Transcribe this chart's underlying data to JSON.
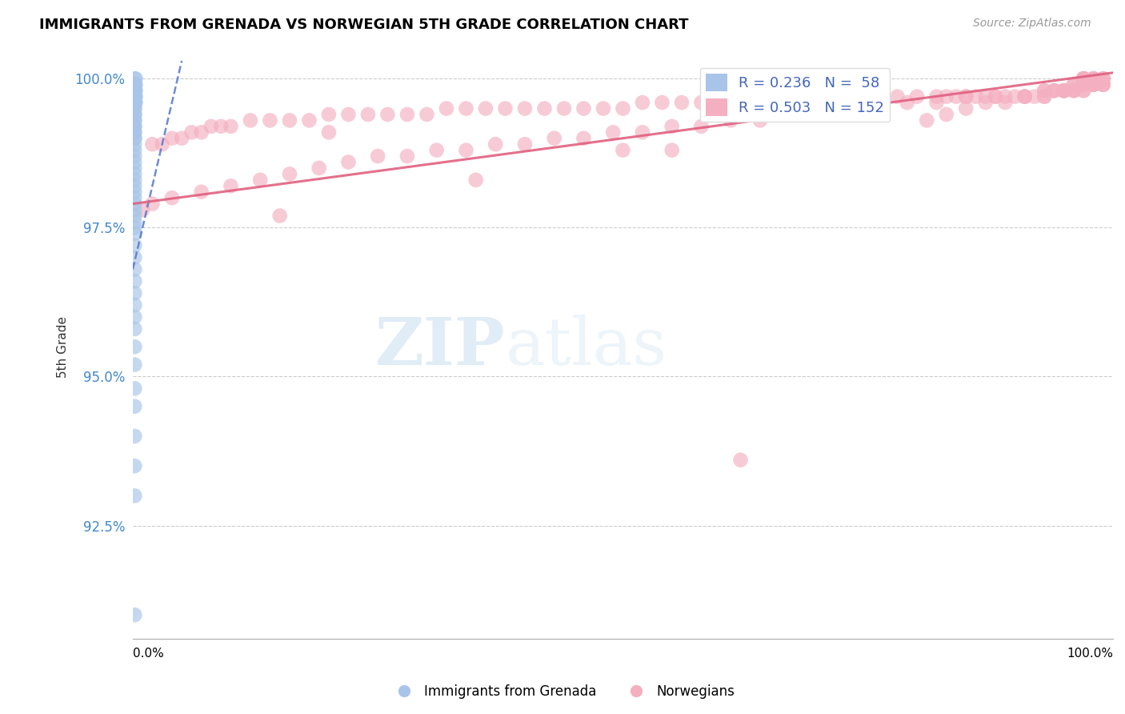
{
  "title": "IMMIGRANTS FROM GRENADA VS NORWEGIAN 5TH GRADE CORRELATION CHART",
  "source": "Source: ZipAtlas.com",
  "ylabel": "5th Grade",
  "xlim": [
    0.0,
    1.0
  ],
  "ylim": [
    0.906,
    1.004
  ],
  "yticks": [
    0.925,
    0.95,
    0.975,
    1.0
  ],
  "ytick_labels": [
    "92.5%",
    "95.0%",
    "97.5%",
    "100.0%"
  ],
  "legend_R_blue": "R = 0.236",
  "legend_N_blue": "N =  58",
  "legend_R_pink": "R = 0.503",
  "legend_N_pink": "N = 152",
  "blue_color": "#a8c4e8",
  "pink_color": "#f4afc0",
  "blue_line_color": "#5577cc",
  "pink_line_color": "#e06080",
  "watermark_zip": "ZIP",
  "watermark_atlas": "atlas",
  "blue_scatter_x": [
    0.002,
    0.003,
    0.002,
    0.003,
    0.002,
    0.002,
    0.003,
    0.002,
    0.003,
    0.002,
    0.002,
    0.002,
    0.002,
    0.003,
    0.002,
    0.002,
    0.002,
    0.002,
    0.002,
    0.002,
    0.002,
    0.002,
    0.002,
    0.002,
    0.002,
    0.002,
    0.002,
    0.002,
    0.002,
    0.002,
    0.002,
    0.002,
    0.002,
    0.002,
    0.002,
    0.002,
    0.002,
    0.002,
    0.002,
    0.002,
    0.002,
    0.002,
    0.002,
    0.002,
    0.002,
    0.002,
    0.002,
    0.002,
    0.002,
    0.002,
    0.002,
    0.002,
    0.002,
    0.002,
    0.002,
    0.002,
    0.002,
    0.002
  ],
  "blue_scatter_y": [
    1.0,
    1.0,
    0.999,
    0.999,
    0.999,
    0.998,
    0.998,
    0.998,
    0.997,
    0.997,
    0.997,
    0.996,
    0.996,
    0.996,
    0.995,
    0.995,
    0.994,
    0.994,
    0.993,
    0.993,
    0.992,
    0.992,
    0.991,
    0.991,
    0.99,
    0.99,
    0.989,
    0.988,
    0.987,
    0.986,
    0.985,
    0.984,
    0.983,
    0.982,
    0.981,
    0.98,
    0.979,
    0.978,
    0.977,
    0.976,
    0.975,
    0.974,
    0.972,
    0.97,
    0.968,
    0.966,
    0.964,
    0.962,
    0.96,
    0.958,
    0.955,
    0.952,
    0.948,
    0.945,
    0.94,
    0.935,
    0.93,
    0.91
  ],
  "pink_scatter_x": [
    0.97,
    0.98,
    0.97,
    0.98,
    0.99,
    0.97,
    0.98,
    0.99,
    0.97,
    0.98,
    0.97,
    0.98,
    0.97,
    0.99,
    0.98,
    0.97,
    0.98,
    0.97,
    0.97,
    0.98,
    0.98,
    0.97,
    0.98,
    0.99,
    0.97,
    0.98,
    0.99,
    0.97,
    0.98,
    0.97,
    0.96,
    0.97,
    0.98,
    0.96,
    0.97,
    0.95,
    0.96,
    0.97,
    0.95,
    0.96,
    0.94,
    0.95,
    0.93,
    0.94,
    0.92,
    0.93,
    0.91,
    0.9,
    0.89,
    0.88,
    0.87,
    0.86,
    0.85,
    0.84,
    0.83,
    0.82,
    0.8,
    0.78,
    0.76,
    0.74,
    0.72,
    0.7,
    0.68,
    0.66,
    0.64,
    0.62,
    0.6,
    0.58,
    0.56,
    0.54,
    0.52,
    0.5,
    0.48,
    0.46,
    0.44,
    0.42,
    0.4,
    0.38,
    0.36,
    0.34,
    0.32,
    0.3,
    0.28,
    0.26,
    0.24,
    0.22,
    0.2,
    0.18,
    0.16,
    0.14,
    0.12,
    0.1,
    0.09,
    0.08,
    0.07,
    0.06,
    0.05,
    0.04,
    0.03,
    0.02,
    0.96,
    0.95,
    0.94,
    0.93,
    0.91,
    0.88,
    0.85,
    0.82,
    0.79,
    0.76,
    0.73,
    0.7,
    0.67,
    0.64,
    0.61,
    0.58,
    0.55,
    0.52,
    0.49,
    0.46,
    0.43,
    0.4,
    0.37,
    0.34,
    0.31,
    0.28,
    0.25,
    0.22,
    0.19,
    0.16,
    0.13,
    0.1,
    0.07,
    0.04,
    0.02,
    0.01,
    0.99,
    0.97,
    0.95,
    0.93,
    0.91,
    0.89,
    0.87,
    0.85,
    0.83,
    0.81,
    0.55,
    0.35,
    0.15,
    0.62,
    0.2,
    0.5
  ],
  "pink_scatter_y": [
    1.0,
    1.0,
    1.0,
    1.0,
    1.0,
    0.999,
    1.0,
    1.0,
    1.0,
    1.0,
    1.0,
    1.0,
    1.0,
    1.0,
    1.0,
    1.0,
    0.999,
    0.999,
    1.0,
    0.999,
    0.999,
    0.999,
    0.999,
    0.999,
    0.999,
    0.999,
    0.999,
    0.999,
    0.999,
    0.999,
    0.999,
    0.999,
    0.999,
    0.998,
    0.998,
    0.998,
    0.998,
    0.998,
    0.998,
    0.998,
    0.998,
    0.998,
    0.998,
    0.998,
    0.997,
    0.997,
    0.997,
    0.997,
    0.997,
    0.997,
    0.997,
    0.997,
    0.997,
    0.997,
    0.997,
    0.997,
    0.997,
    0.997,
    0.997,
    0.996,
    0.996,
    0.996,
    0.996,
    0.996,
    0.996,
    0.996,
    0.996,
    0.996,
    0.996,
    0.996,
    0.996,
    0.995,
    0.995,
    0.995,
    0.995,
    0.995,
    0.995,
    0.995,
    0.995,
    0.995,
    0.995,
    0.994,
    0.994,
    0.994,
    0.994,
    0.994,
    0.994,
    0.993,
    0.993,
    0.993,
    0.993,
    0.992,
    0.992,
    0.992,
    0.991,
    0.991,
    0.99,
    0.99,
    0.989,
    0.989,
    0.999,
    0.998,
    0.998,
    0.998,
    0.997,
    0.997,
    0.997,
    0.996,
    0.996,
    0.995,
    0.995,
    0.994,
    0.994,
    0.993,
    0.993,
    0.992,
    0.992,
    0.991,
    0.991,
    0.99,
    0.99,
    0.989,
    0.989,
    0.988,
    0.988,
    0.987,
    0.987,
    0.986,
    0.985,
    0.984,
    0.983,
    0.982,
    0.981,
    0.98,
    0.979,
    0.978,
    0.999,
    0.999,
    0.998,
    0.997,
    0.997,
    0.996,
    0.996,
    0.995,
    0.994,
    0.993,
    0.988,
    0.983,
    0.977,
    0.936,
    0.991,
    0.988
  ]
}
